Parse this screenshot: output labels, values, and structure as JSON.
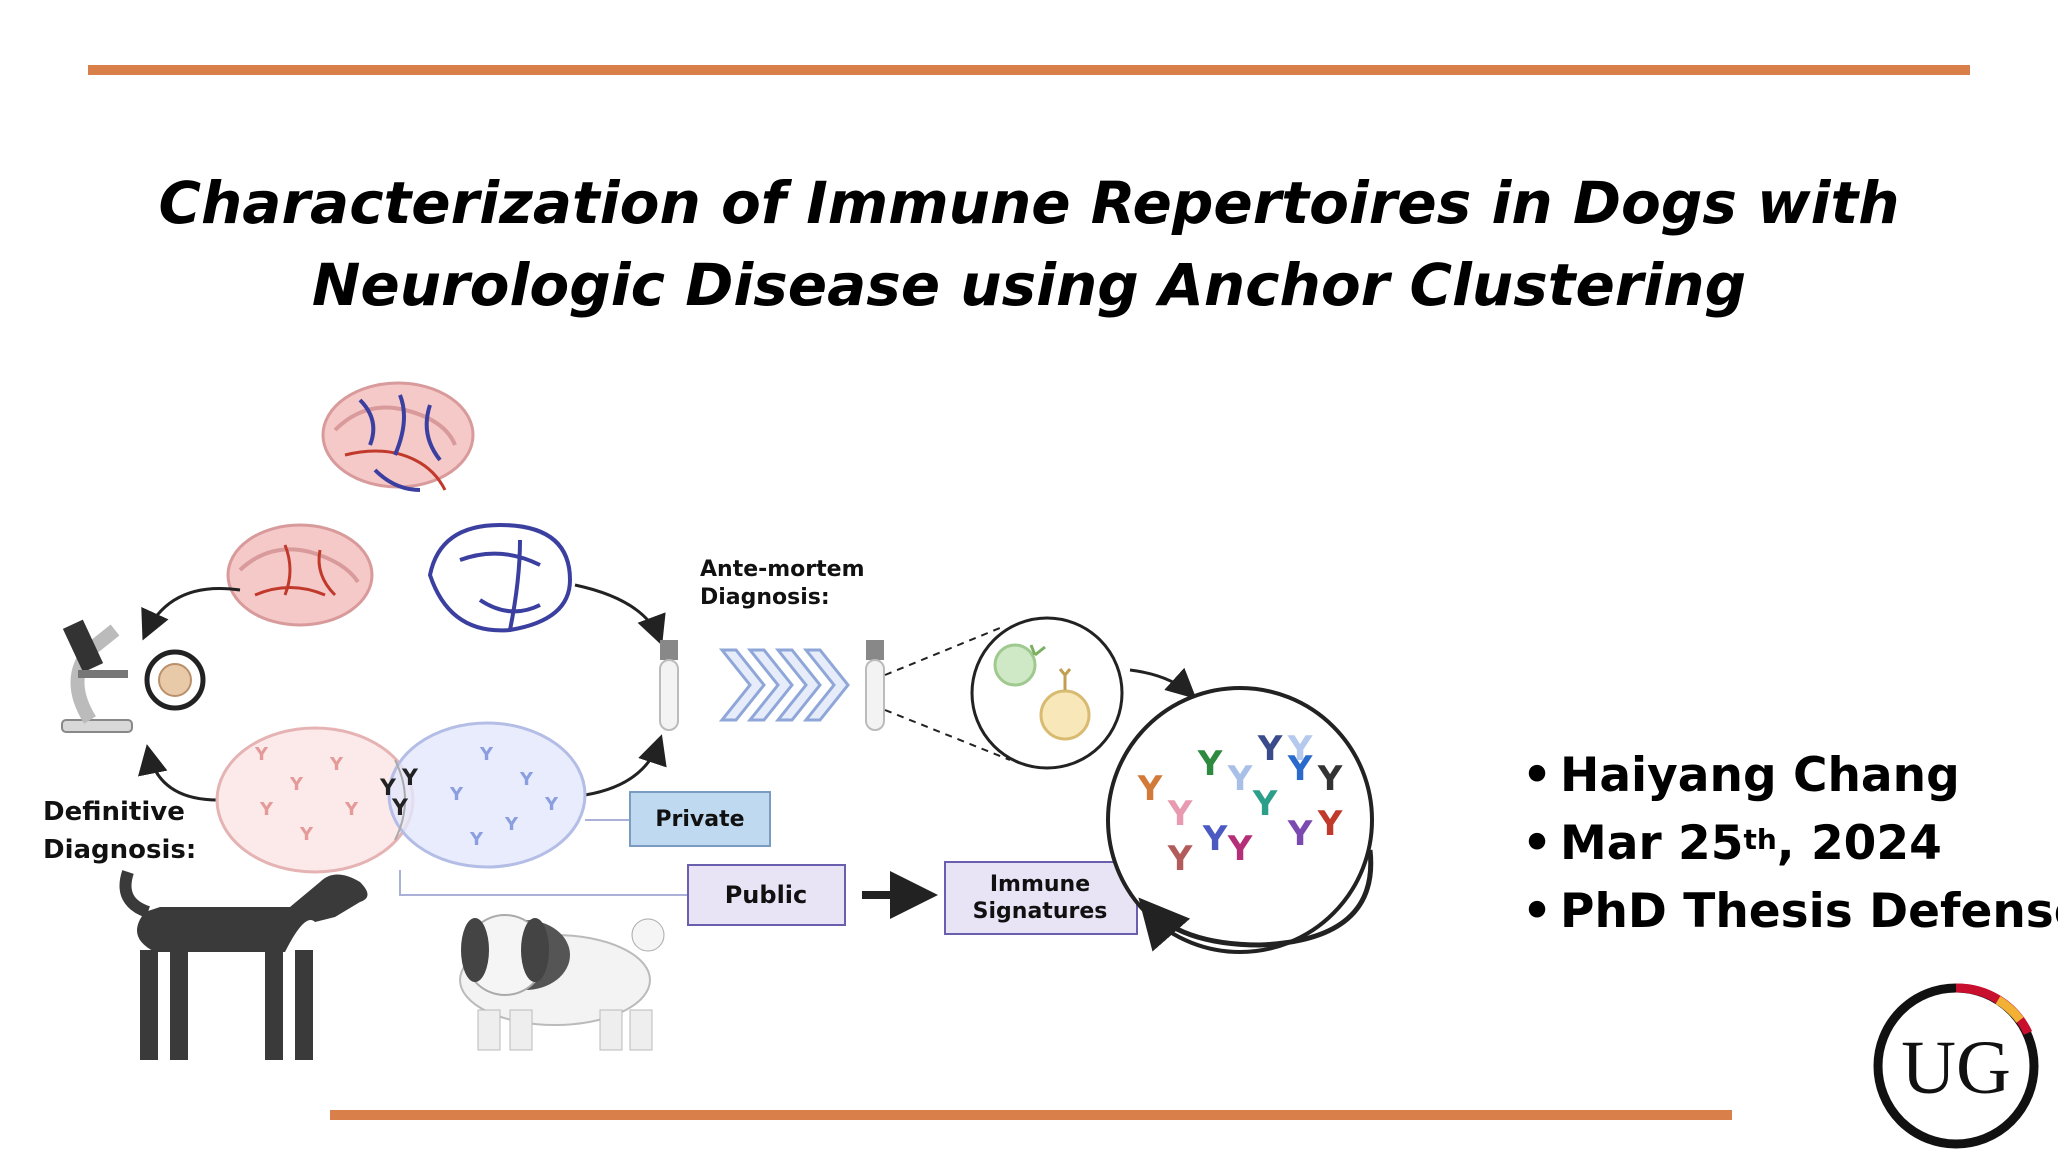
{
  "title": {
    "line1": "Characterization of Immune Repertoires in Dogs with",
    "line2": "Neurologic Disease using Anchor Clustering"
  },
  "figure": {
    "ante_mortem_line1": "Ante-mortem",
    "ante_mortem_line2": "Diagnosis:",
    "definitive_line1": "Definitive",
    "definitive_line2": "Diagnosis:",
    "private_label": "Private",
    "public_label": "Public",
    "immune_signatures_line1": "Immune",
    "immune_signatures_line2": "Signatures"
  },
  "presenter": {
    "name": "Haiyang Chang",
    "date_prefix": "Mar 25",
    "date_superscript": "th",
    "date_suffix": ", 2024",
    "event": "PhD Thesis Defense"
  },
  "logo_text": "UG",
  "colors": {
    "accent_bar": "#d9804a",
    "private_box": "#bfd9f0",
    "public_box": "#e8e4f6"
  }
}
